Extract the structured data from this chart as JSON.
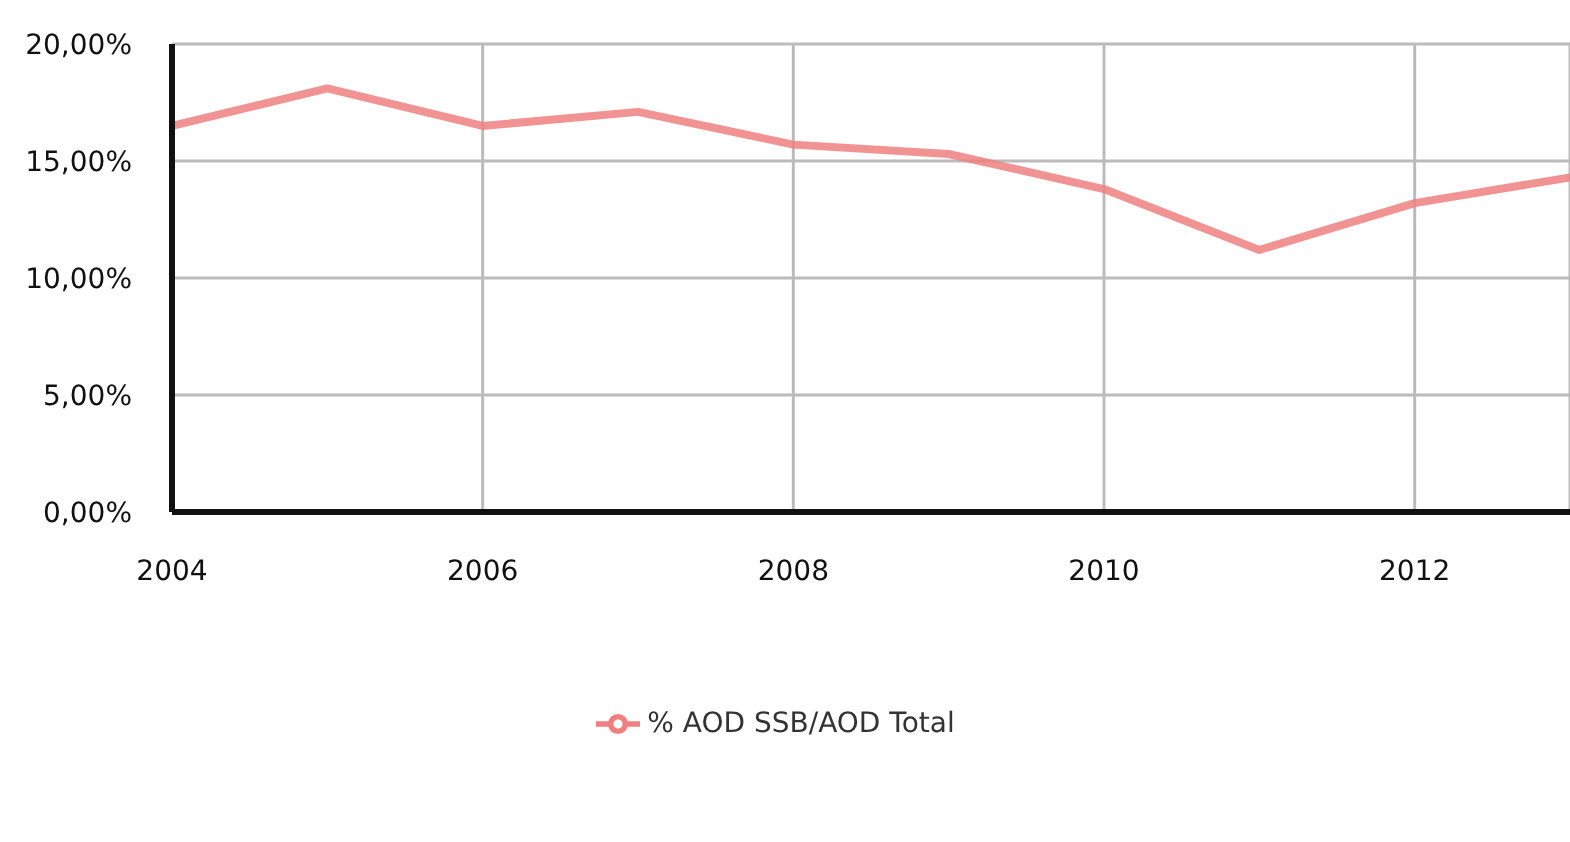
{
  "chart_data": {
    "type": "line",
    "x": [
      2004,
      2005,
      2006,
      2007,
      2008,
      2009,
      2010,
      2011,
      2012,
      2013
    ],
    "series": [
      {
        "name": "% AOD SSB/AOD Total",
        "color": "#f08080",
        "values": [
          16.5,
          18.1,
          16.5,
          17.1,
          15.7,
          15.3,
          13.8,
          11.2,
          13.2,
          14.3
        ]
      }
    ],
    "xlim": [
      2004,
      2013
    ],
    "xticks": [
      2004,
      2006,
      2008,
      2010,
      2012
    ],
    "ylim": [
      0,
      20
    ],
    "yticks": [
      {
        "value": 0,
        "label": "0,00%"
      },
      {
        "value": 5,
        "label": "5,00%"
      },
      {
        "value": 10,
        "label": "10,00%"
      },
      {
        "value": 15,
        "label": "15,00%"
      },
      {
        "value": 20,
        "label": "20,00%"
      }
    ],
    "grid": true,
    "legend": "bottom",
    "marker": "none",
    "line_style": "solid"
  }
}
